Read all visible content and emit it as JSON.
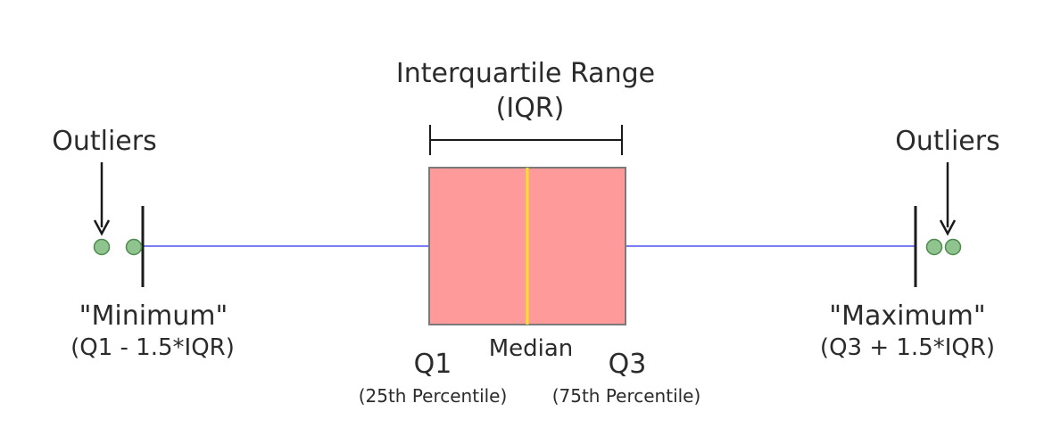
{
  "iqr_title": "Interquartile Range",
  "iqr_abbrev": "(IQR)",
  "outliers_left_label": "Outliers",
  "outliers_right_label": "Outliers",
  "minimum_label": "\"Minimum\"",
  "minimum_formula": "(Q1 - 1.5*IQR)",
  "maximum_label": "\"Maximum\"",
  "maximum_formula": "(Q3 + 1.5*IQR)",
  "q1_label": "Q1",
  "q1_note": "(25th Percentile)",
  "median_label": "Median",
  "q3_label": "Q3",
  "q3_note": "(75th Percentile)",
  "colors": {
    "box_fill": "#fe9a9a",
    "box_stroke": "#7a7a7a",
    "median_line": "#f2e520",
    "whisker_line": "#7b7bf4",
    "outlier_fill": "#8fc48f",
    "outlier_stroke": "#4f8a4f",
    "ink": "#1a1a1a"
  }
}
